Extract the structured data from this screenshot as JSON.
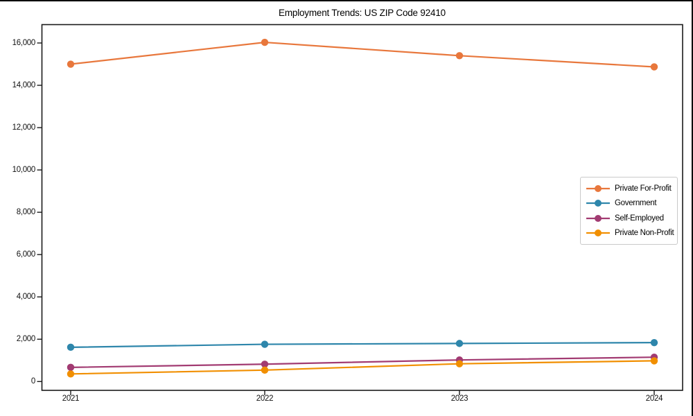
{
  "figure": {
    "background": "#ffffff",
    "outer_border_color": "#000000",
    "spine_color": "#1a1a1a",
    "tick_label_color": "#111111",
    "legend_border_color": "#c9c9c9"
  },
  "chart_data": {
    "type": "line",
    "title": "Employment Trends: US ZIP Code 92410",
    "xlabel": "",
    "ylabel": "",
    "categories": [
      "2021",
      "2022",
      "2023",
      "2024"
    ],
    "series": [
      {
        "name": "Private For-Profit",
        "color": "#E8773C",
        "values": [
          15000,
          16030,
          15400,
          14870
        ]
      },
      {
        "name": "Government",
        "color": "#2E86AB",
        "values": [
          1620,
          1760,
          1800,
          1840
        ]
      },
      {
        "name": "Self-Employed",
        "color": "#A23B72",
        "values": [
          670,
          820,
          1020,
          1150
        ]
      },
      {
        "name": "Private Non-Profit",
        "color": "#F18F01",
        "values": [
          360,
          540,
          840,
          980
        ]
      }
    ],
    "ylim": [
      0,
      16000
    ],
    "yticks": [
      0,
      2000,
      4000,
      6000,
      8000,
      10000,
      12000,
      14000,
      16000
    ],
    "ytick_labels": [
      "0",
      "2,000",
      "4,000",
      "6,000",
      "8,000",
      "10,000",
      "12,000",
      "14,000",
      "16,000"
    ],
    "grid": false,
    "marker": "o",
    "legend_position": "center right"
  }
}
